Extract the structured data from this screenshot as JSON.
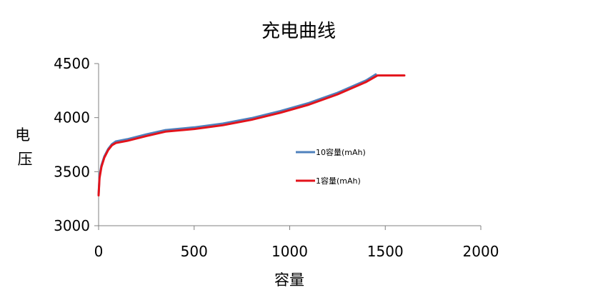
{
  "chart_data": {
    "type": "line",
    "title": "充电曲线",
    "xlabel": "容量",
    "ylabel": "电压",
    "xlim": [
      0,
      2000
    ],
    "ylim": [
      3000,
      4500
    ],
    "x_ticks": [
      "0",
      "500",
      "1000",
      "1500",
      "2000"
    ],
    "y_ticks": [
      "3000",
      "3500",
      "4000",
      "4500"
    ],
    "grid": false,
    "legend_position": "middle-right",
    "series": [
      {
        "name": "10容量(mAh)",
        "color": "#4f81bd",
        "x": [
          0,
          5,
          15,
          30,
          50,
          70,
          90,
          150,
          250,
          350,
          500,
          650,
          800,
          950,
          1100,
          1250,
          1400,
          1450
        ],
        "y": [
          3290,
          3460,
          3560,
          3640,
          3710,
          3755,
          3780,
          3800,
          3845,
          3885,
          3910,
          3945,
          3995,
          4060,
          4135,
          4230,
          4345,
          4400
        ]
      },
      {
        "name": "1容量(mAh)",
        "color": "#e3131b",
        "x": [
          0,
          5,
          15,
          30,
          50,
          70,
          90,
          150,
          250,
          350,
          500,
          650,
          800,
          950,
          1100,
          1250,
          1400,
          1460,
          1520,
          1600
        ],
        "y": [
          3280,
          3440,
          3545,
          3630,
          3700,
          3745,
          3765,
          3785,
          3830,
          3870,
          3895,
          3930,
          3980,
          4045,
          4120,
          4215,
          4330,
          4390,
          4390,
          4390
        ]
      }
    ]
  }
}
